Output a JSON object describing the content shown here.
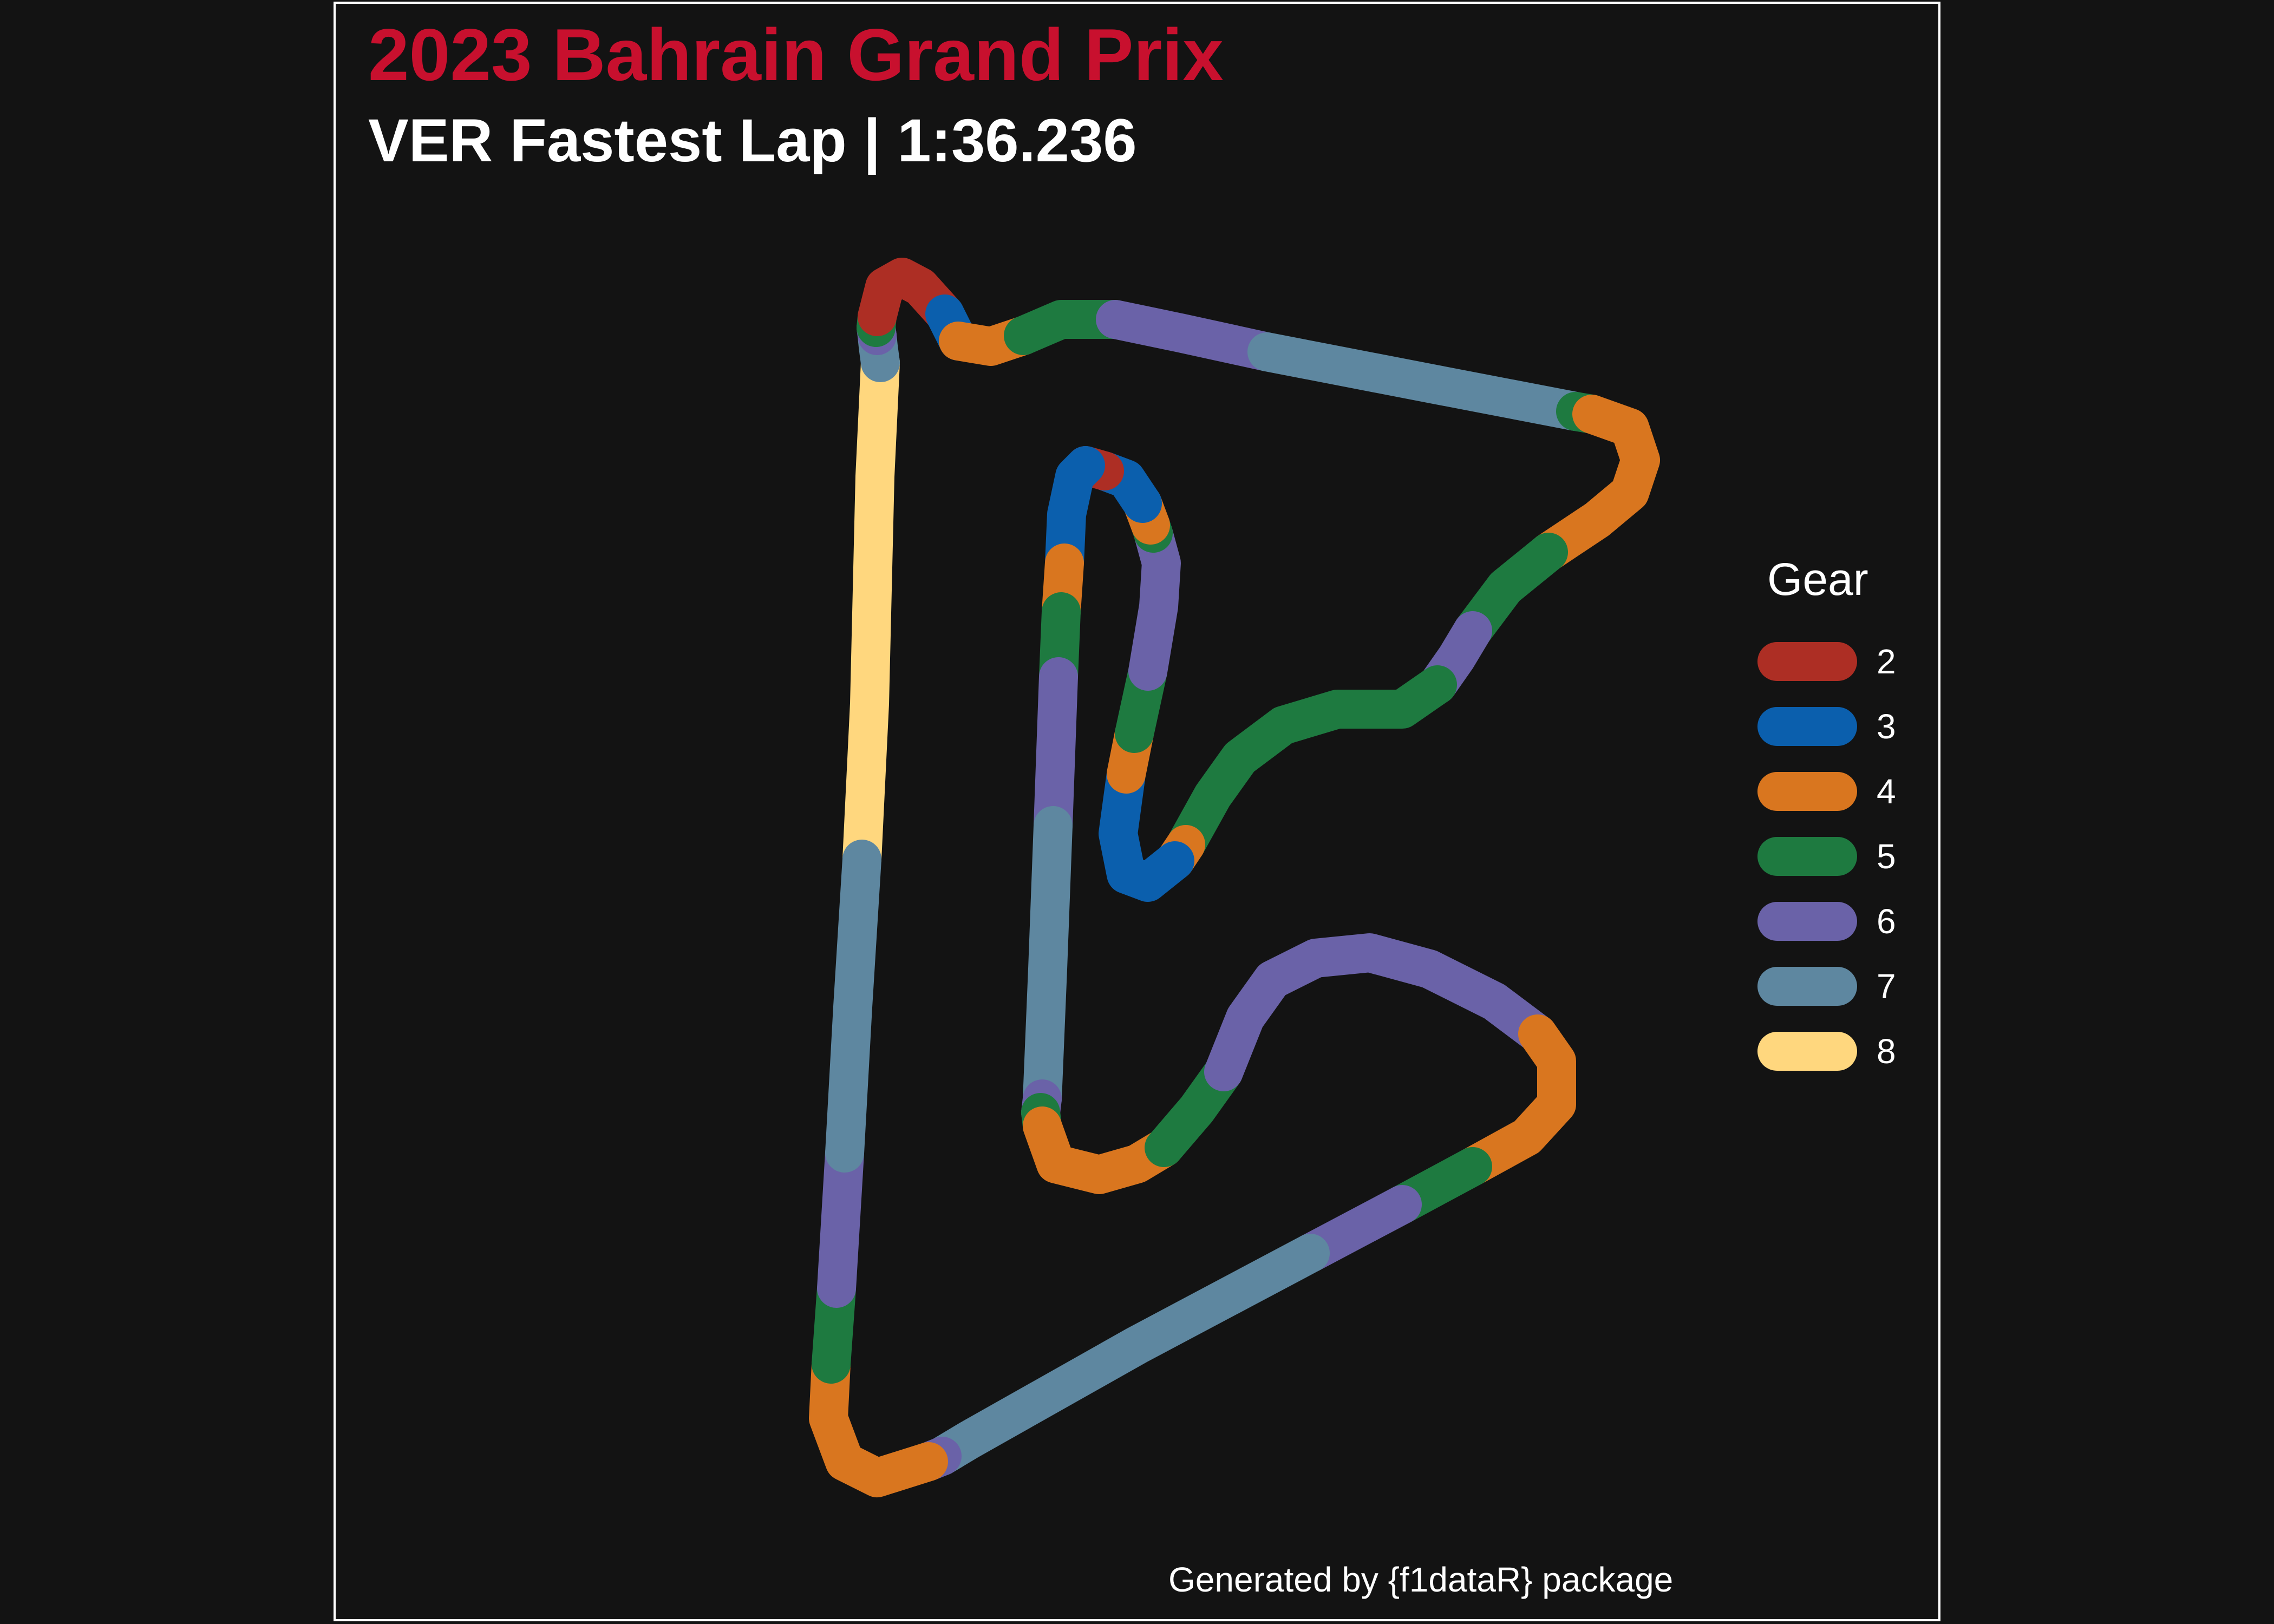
{
  "chart_data": {
    "type": "line",
    "title": "2023 Bahrain Grand Prix",
    "subtitle": "VER Fastest Lap | 1:36.236",
    "caption": "Generated by {f1dataR} package",
    "legend": {
      "title": "Gear",
      "placement": "right",
      "entries": [
        {
          "label": "2",
          "color": "#ad2e24"
        },
        {
          "label": "3",
          "color": "#0b5fad"
        },
        {
          "label": "4",
          "color": "#d9761f"
        },
        {
          "label": "5",
          "color": "#1e7a40"
        },
        {
          "label": "6",
          "color": "#6a62a8"
        },
        {
          "label": "7",
          "color": "#5e87a0"
        },
        {
          "label": "8",
          "color": "#ffd77e"
        }
      ]
    },
    "grid": false,
    "series": [
      {
        "gear": 8,
        "points": [
          [
            1592,
            1587
          ],
          [
            1606,
            1300
          ],
          [
            1616,
            880
          ],
          [
            1626,
            670
          ]
        ]
      },
      {
        "gear": 7,
        "points": [
          [
            1626,
            670
          ],
          [
            1622,
            640
          ],
          [
            1620,
            620
          ]
        ]
      },
      {
        "gear": 6,
        "points": [
          [
            1620,
            620
          ],
          [
            1618,
            605
          ]
        ]
      },
      {
        "gear": 5,
        "points": [
          [
            1618,
            605
          ],
          [
            1620,
            585
          ]
        ]
      },
      {
        "gear": 2,
        "points": [
          [
            1620,
            585
          ],
          [
            1634,
            530
          ],
          [
            1666,
            512
          ],
          [
            1700,
            530
          ],
          [
            1745,
            580
          ]
        ]
      },
      {
        "gear": 3,
        "points": [
          [
            1745,
            580
          ],
          [
            1770,
            630
          ]
        ]
      },
      {
        "gear": 4,
        "points": [
          [
            1770,
            630
          ],
          [
            1830,
            640
          ],
          [
            1890,
            620
          ]
        ]
      },
      {
        "gear": 5,
        "points": [
          [
            1890,
            620
          ],
          [
            1960,
            590
          ],
          [
            2060,
            590
          ]
        ]
      },
      {
        "gear": 6,
        "points": [
          [
            2060,
            590
          ],
          [
            2180,
            615
          ],
          [
            2340,
            650
          ]
        ]
      },
      {
        "gear": 7,
        "points": [
          [
            2340,
            650
          ],
          [
            2650,
            710
          ],
          [
            2910,
            760
          ]
        ]
      },
      {
        "gear": 5,
        "points": [
          [
            2910,
            760
          ],
          [
            2940,
            765
          ]
        ]
      },
      {
        "gear": 4,
        "points": [
          [
            2940,
            765
          ],
          [
            3010,
            790
          ],
          [
            3030,
            850
          ],
          [
            3010,
            910
          ],
          [
            2950,
            960
          ],
          [
            2860,
            1020
          ]
        ]
      },
      {
        "gear": 5,
        "points": [
          [
            2860,
            1020
          ],
          [
            2780,
            1085
          ],
          [
            2720,
            1165
          ]
        ]
      },
      {
        "gear": 6,
        "points": [
          [
            2720,
            1165
          ],
          [
            2690,
            1215
          ],
          [
            2655,
            1265
          ]
        ]
      },
      {
        "gear": 5,
        "points": [
          [
            2655,
            1265
          ],
          [
            2590,
            1310
          ],
          [
            2470,
            1310
          ],
          [
            2370,
            1340
          ],
          [
            2290,
            1400
          ],
          [
            2240,
            1470
          ],
          [
            2190,
            1560
          ]
        ]
      },
      {
        "gear": 4,
        "points": [
          [
            2190,
            1560
          ],
          [
            2170,
            1590
          ]
        ]
      },
      {
        "gear": 3,
        "points": [
          [
            2170,
            1590
          ],
          [
            2120,
            1630
          ],
          [
            2080,
            1615
          ],
          [
            2065,
            1540
          ],
          [
            2080,
            1430
          ]
        ]
      },
      {
        "gear": 4,
        "points": [
          [
            2080,
            1430
          ],
          [
            2095,
            1355
          ]
        ]
      },
      {
        "gear": 5,
        "points": [
          [
            2095,
            1355
          ],
          [
            2120,
            1240
          ]
        ]
      },
      {
        "gear": 6,
        "points": [
          [
            2120,
            1240
          ],
          [
            2140,
            1120
          ],
          [
            2145,
            1040
          ],
          [
            2130,
            985
          ]
        ]
      },
      {
        "gear": 5,
        "points": [
          [
            2130,
            985
          ],
          [
            2125,
            970
          ]
        ]
      },
      {
        "gear": 4,
        "points": [
          [
            2125,
            970
          ],
          [
            2110,
            930
          ]
        ]
      },
      {
        "gear": 3,
        "points": [
          [
            2110,
            930
          ],
          [
            2080,
            885
          ],
          [
            2040,
            870
          ]
        ]
      },
      {
        "gear": 2,
        "points": [
          [
            2040,
            870
          ],
          [
            2005,
            860
          ]
        ]
      },
      {
        "gear": 3,
        "points": [
          [
            2005,
            860
          ],
          [
            1985,
            880
          ],
          [
            1970,
            950
          ],
          [
            1966,
            1040
          ]
        ]
      },
      {
        "gear": 4,
        "points": [
          [
            1966,
            1040
          ],
          [
            1960,
            1130
          ]
        ]
      },
      {
        "gear": 5,
        "points": [
          [
            1960,
            1130
          ],
          [
            1955,
            1250
          ]
        ]
      },
      {
        "gear": 6,
        "points": [
          [
            1955,
            1250
          ],
          [
            1945,
            1525
          ]
        ]
      },
      {
        "gear": 7,
        "points": [
          [
            1945,
            1525
          ],
          [
            1935,
            1790
          ],
          [
            1925,
            2030
          ]
        ]
      },
      {
        "gear": 6,
        "points": [
          [
            1925,
            2030
          ],
          [
            1922,
            2055
          ]
        ]
      },
      {
        "gear": 5,
        "points": [
          [
            1922,
            2055
          ],
          [
            1925,
            2080
          ]
        ]
      },
      {
        "gear": 4,
        "points": [
          [
            1925,
            2080
          ],
          [
            1950,
            2150
          ],
          [
            2030,
            2170
          ],
          [
            2100,
            2150
          ],
          [
            2150,
            2120
          ]
        ]
      },
      {
        "gear": 5,
        "points": [
          [
            2150,
            2120
          ],
          [
            2210,
            2050
          ],
          [
            2260,
            1980
          ]
        ]
      },
      {
        "gear": 6,
        "points": [
          [
            2260,
            1980
          ],
          [
            2300,
            1880
          ],
          [
            2350,
            1810
          ],
          [
            2430,
            1770
          ],
          [
            2530,
            1760
          ],
          [
            2640,
            1790
          ],
          [
            2760,
            1850
          ],
          [
            2840,
            1910
          ]
        ]
      },
      {
        "gear": 4,
        "points": [
          [
            2840,
            1910
          ],
          [
            2875,
            1960
          ],
          [
            2875,
            2040
          ],
          [
            2820,
            2100
          ],
          [
            2720,
            2155
          ]
        ]
      },
      {
        "gear": 5,
        "points": [
          [
            2720,
            2155
          ],
          [
            2590,
            2225
          ]
        ]
      },
      {
        "gear": 6,
        "points": [
          [
            2590,
            2225
          ],
          [
            2420,
            2315
          ]
        ]
      },
      {
        "gear": 7,
        "points": [
          [
            2420,
            2315
          ],
          [
            2100,
            2485
          ],
          [
            1790,
            2660
          ],
          [
            1740,
            2690
          ]
        ]
      },
      {
        "gear": 6,
        "points": [
          [
            1740,
            2690
          ],
          [
            1715,
            2700
          ]
        ]
      },
      {
        "gear": 4,
        "points": [
          [
            1715,
            2700
          ],
          [
            1620,
            2730
          ],
          [
            1560,
            2700
          ],
          [
            1530,
            2620
          ],
          [
            1535,
            2520
          ]
        ]
      },
      {
        "gear": 5,
        "points": [
          [
            1535,
            2520
          ],
          [
            1545,
            2380
          ]
        ]
      },
      {
        "gear": 6,
        "points": [
          [
            1545,
            2380
          ],
          [
            1560,
            2130
          ]
        ]
      },
      {
        "gear": 7,
        "points": [
          [
            1560,
            2130
          ],
          [
            1575,
            1860
          ],
          [
            1592,
            1587
          ]
        ]
      }
    ]
  }
}
